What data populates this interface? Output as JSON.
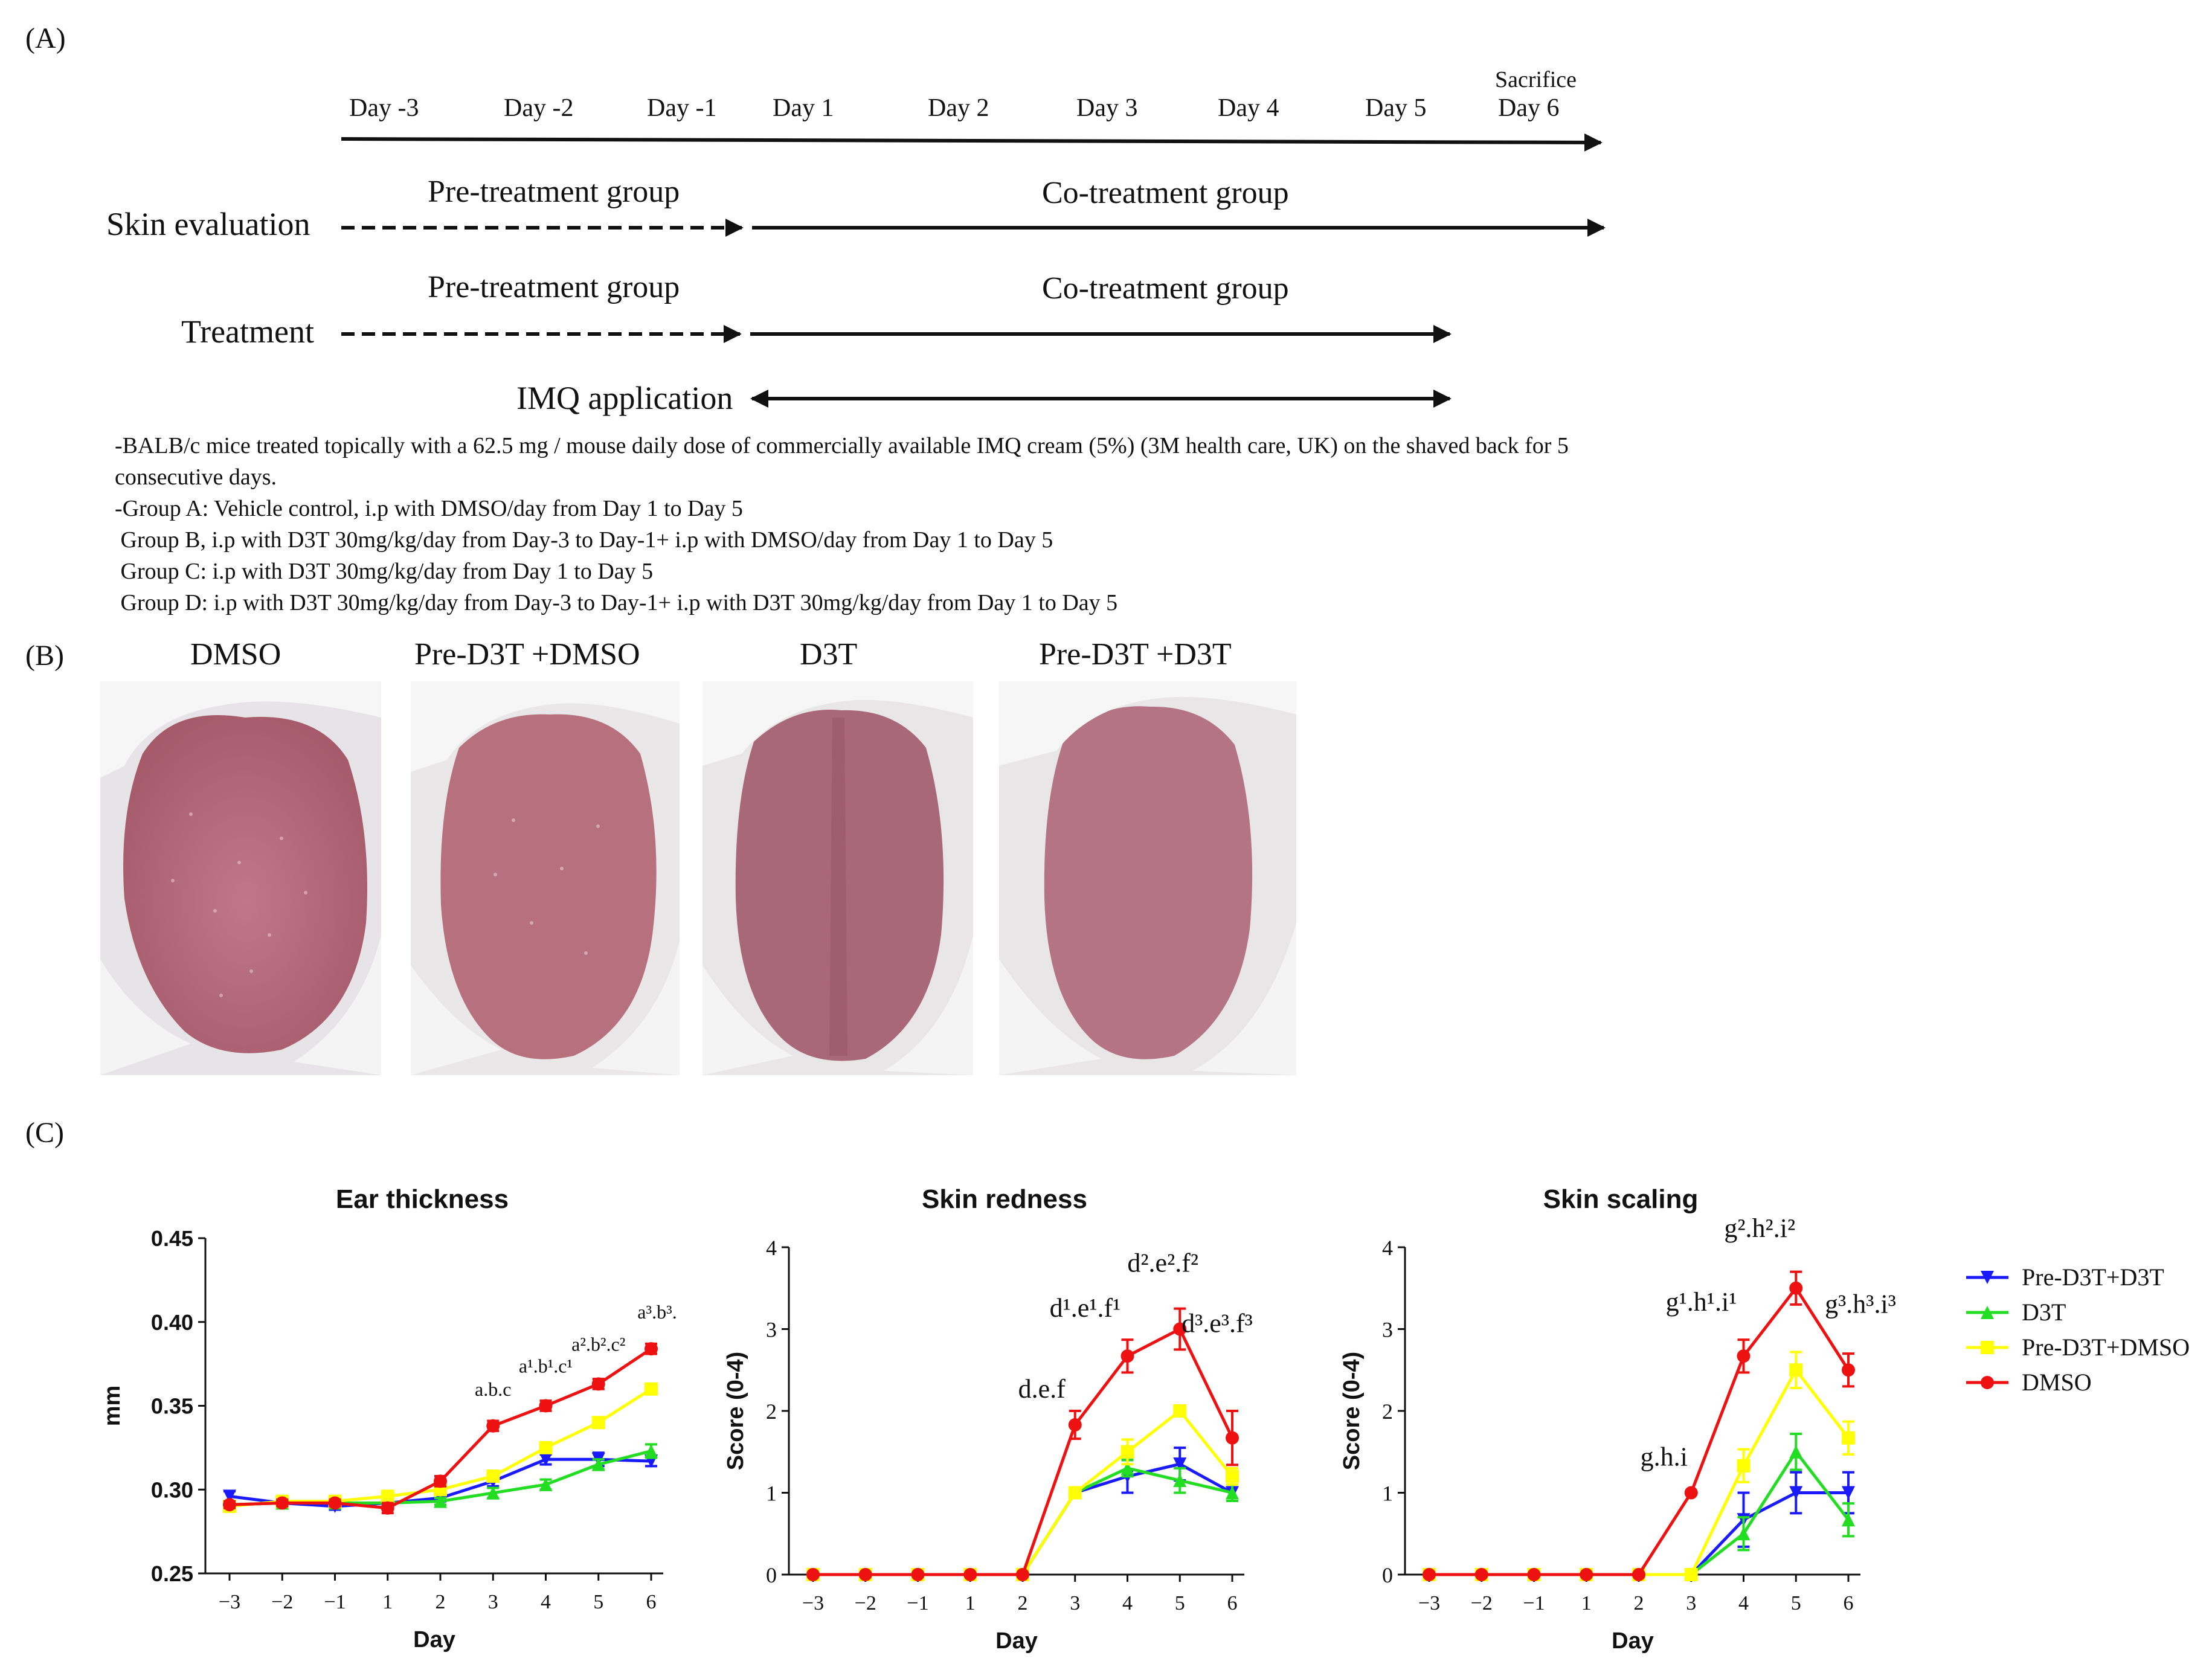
{
  "panel_a": {
    "label": "(A)",
    "days": [
      "Day -3",
      "Day -2",
      "Day -1",
      "Day 1",
      "Day 2",
      "Day 3",
      "Day 4",
      "Day 5",
      "Day 6"
    ],
    "sacrifice_label": "Sacrifice",
    "skin_evaluation": {
      "label": "Skin evaluation",
      "pre": "Pre-treatment group",
      "co": "Co-treatment group"
    },
    "treatment": {
      "label": "Treatment",
      "pre": "Pre-treatment group",
      "co": "Co-treatment group"
    },
    "imq_label": "IMQ application",
    "notes": [
      "-BALB/c mice treated topically with a 62.5 mg / mouse daily dose of commercially available IMQ cream (5%) (3M health care, UK) on the shaved back for 5 consecutive days.",
      "-Group A: Vehicle control, i.p with DMSO/day from Day 1 to Day 5",
      " Group B, i.p with D3T 30mg/kg/day from Day-3 to Day-1+ i.p with DMSO/day from Day 1 to Day 5",
      " Group C: i.p with D3T 30mg/kg/day from Day 1 to Day 5",
      " Group D: i.p with D3T 30mg/kg/day from Day-3 to Day-1+ i.p with D3T 30mg/kg/day from Day 1 to Day 5"
    ]
  },
  "panel_b": {
    "label": "(B)",
    "photos": [
      "DMSO",
      "Pre-D3T +DMSO",
      "D3T",
      "Pre-D3T +D3T"
    ]
  },
  "panel_c": {
    "label": "(C)",
    "xlabel": "Day",
    "legend": [
      "Pre-D3T+D3T",
      "D3T",
      "Pre-D3T+DMSO",
      "DMSO"
    ]
  },
  "colors": {
    "Pre-D3T+D3T": "#1a1aff",
    "D3T": "#22dd22",
    "Pre-D3T+DMSO": "#ffff00",
    "DMSO": "#ee1111",
    "skin": "#b86a78",
    "fur": "#f4f4f4"
  },
  "chart_data": [
    {
      "type": "line",
      "title": "Ear thickness",
      "xlabel": "Day",
      "ylabel": "mm",
      "x": [
        -3,
        -2,
        -1,
        1,
        2,
        3,
        4,
        5,
        6
      ],
      "ylim": [
        0.25,
        0.45
      ],
      "yticks": [
        "0.25",
        "0.30",
        "0.35",
        "0.40",
        "0.45"
      ],
      "series": [
        {
          "name": "Pre-D3T+D3T",
          "values": [
            0.296,
            0.292,
            0.29,
            0.292,
            0.295,
            0.305,
            0.318,
            0.318,
            0.317
          ],
          "err": [
            0.003,
            0.002,
            0.002,
            0.002,
            0.002,
            0.003,
            0.003,
            0.004,
            0.003
          ]
        },
        {
          "name": "D3T",
          "values": [
            0.291,
            0.292,
            0.292,
            0.292,
            0.293,
            0.298,
            0.303,
            0.315,
            0.323
          ],
          "err": [
            0.002,
            0.002,
            0.002,
            0.002,
            0.002,
            0.003,
            0.003,
            0.003,
            0.004
          ]
        },
        {
          "name": "Pre-D3T+DMSO",
          "values": [
            0.29,
            0.293,
            0.293,
            0.296,
            0.3,
            0.308,
            0.325,
            0.34,
            0.36
          ],
          "err": [
            0.002,
            0.002,
            0.002,
            0.003,
            0.003,
            0.003,
            0.003,
            0.003,
            0.003
          ]
        },
        {
          "name": "DMSO",
          "values": [
            0.291,
            0.292,
            0.292,
            0.289,
            0.305,
            0.338,
            0.35,
            0.363,
            0.384
          ],
          "err": [
            0.002,
            0.002,
            0.002,
            0.003,
            0.003,
            0.003,
            0.003,
            0.003,
            0.003
          ]
        }
      ],
      "annotations": [
        {
          "day": 3,
          "text": "a.b.c"
        },
        {
          "day": 4,
          "text": "a¹.b¹.c¹"
        },
        {
          "day": 5,
          "text": "a².b².c²"
        },
        {
          "day": 6,
          "text": "a³.b³."
        }
      ]
    },
    {
      "type": "line",
      "title": "Skin redness",
      "xlabel": "Day",
      "ylabel": "Score (0-4)",
      "x": [
        -3,
        -2,
        -1,
        1,
        2,
        3,
        4,
        5,
        6
      ],
      "ylim": [
        0,
        4
      ],
      "yticks": [
        "0",
        "1",
        "2",
        "3",
        "4"
      ],
      "series": [
        {
          "name": "Pre-D3T+D3T",
          "values": [
            0,
            0,
            0,
            0,
            0,
            1.0,
            1.2,
            1.35,
            1.0
          ],
          "err": [
            0,
            0,
            0,
            0,
            0,
            0.05,
            0.2,
            0.2,
            0.1
          ]
        },
        {
          "name": "D3T",
          "values": [
            0,
            0,
            0,
            0,
            0,
            1.0,
            1.3,
            1.15,
            1.0
          ],
          "err": [
            0,
            0,
            0,
            0,
            0,
            0.05,
            0.1,
            0.15,
            0.1
          ]
        },
        {
          "name": "Pre-D3T+DMSO",
          "values": [
            0,
            0,
            0,
            0,
            0,
            1.0,
            1.5,
            2.0,
            1.2
          ],
          "err": [
            0,
            0,
            0,
            0,
            0,
            0.05,
            0.15,
            0.05,
            0.1
          ]
        },
        {
          "name": "DMSO",
          "values": [
            0,
            0,
            0,
            0,
            0,
            1.83,
            2.67,
            3.0,
            1.67
          ],
          "err": [
            0,
            0,
            0,
            0,
            0,
            0.17,
            0.2,
            0.25,
            0.33
          ]
        }
      ],
      "annotations": [
        {
          "day": 3,
          "text": "d.e.f"
        },
        {
          "day": 4,
          "text": "d¹.e¹.f¹"
        },
        {
          "day": 5,
          "text": "d².e².f²"
        },
        {
          "day": 6,
          "text": "d³.e³.f³"
        }
      ]
    },
    {
      "type": "line",
      "title": "Skin scaling",
      "xlabel": "Day",
      "ylabel": "Score (0-4)",
      "x": [
        -3,
        -2,
        -1,
        1,
        2,
        3,
        4,
        5,
        6
      ],
      "ylim": [
        0,
        4
      ],
      "yticks": [
        "0",
        "1",
        "2",
        "3",
        "4"
      ],
      "series": [
        {
          "name": "Pre-D3T+D3T",
          "values": [
            0,
            0,
            0,
            0,
            0,
            0,
            0.67,
            1.0,
            1.0
          ],
          "err": [
            0,
            0,
            0,
            0,
            0,
            0,
            0.33,
            0.25,
            0.25
          ]
        },
        {
          "name": "D3T",
          "values": [
            0,
            0,
            0,
            0,
            0,
            0,
            0.5,
            1.5,
            0.67
          ],
          "err": [
            0,
            0,
            0,
            0,
            0,
            0,
            0.2,
            0.22,
            0.2
          ]
        },
        {
          "name": "Pre-D3T+DMSO",
          "values": [
            0,
            0,
            0,
            0,
            0,
            0,
            1.33,
            2.5,
            1.67
          ],
          "err": [
            0,
            0,
            0,
            0,
            0,
            0,
            0.2,
            0.22,
            0.2
          ]
        },
        {
          "name": "DMSO",
          "values": [
            0,
            0,
            0,
            0,
            0,
            1.0,
            2.67,
            3.5,
            2.5
          ],
          "err": [
            0,
            0,
            0,
            0,
            0,
            0,
            0.2,
            0.2,
            0.2
          ]
        }
      ],
      "annotations": [
        {
          "day": 3,
          "text": "g.h.i"
        },
        {
          "day": 4,
          "text": "g¹.h¹.i¹"
        },
        {
          "day": 5,
          "text": "g².h².i²"
        },
        {
          "day": 6,
          "text": "g³.h³.i³"
        }
      ]
    }
  ]
}
